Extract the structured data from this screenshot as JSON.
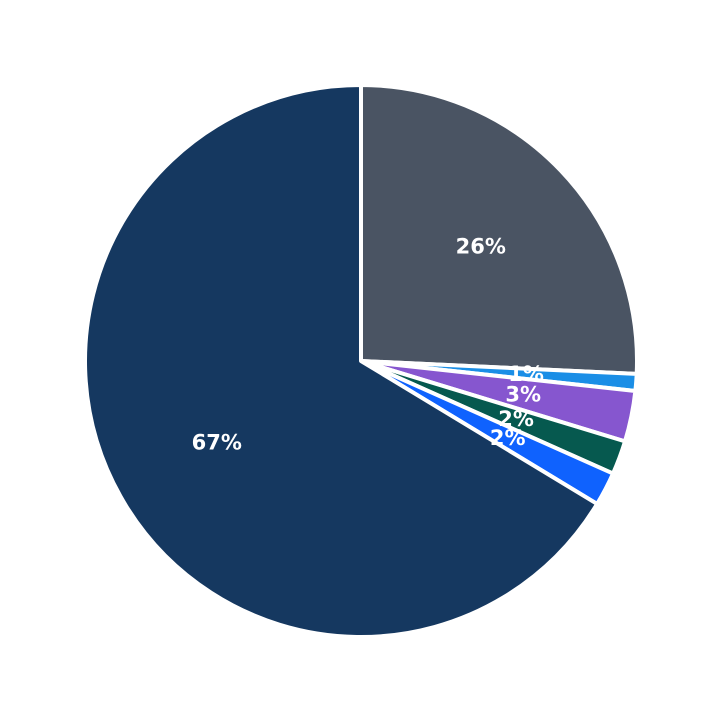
{
  "chart_data": {
    "type": "pie",
    "start_angle": "12 o'clock, clockwise",
    "slices": [
      {
        "value": 26,
        "label": "26%",
        "color": "#4a5463"
      },
      {
        "value": 1,
        "label": "1%",
        "color": "#1a8ee6"
      },
      {
        "value": 3,
        "label": "3%",
        "color": "#8656cf"
      },
      {
        "value": 2,
        "label": "2%",
        "color": "#06594f"
      },
      {
        "value": 2,
        "label": "2%",
        "color": "#0f62fe"
      },
      {
        "value": 67,
        "label": "67%",
        "color": "#153860"
      }
    ]
  }
}
